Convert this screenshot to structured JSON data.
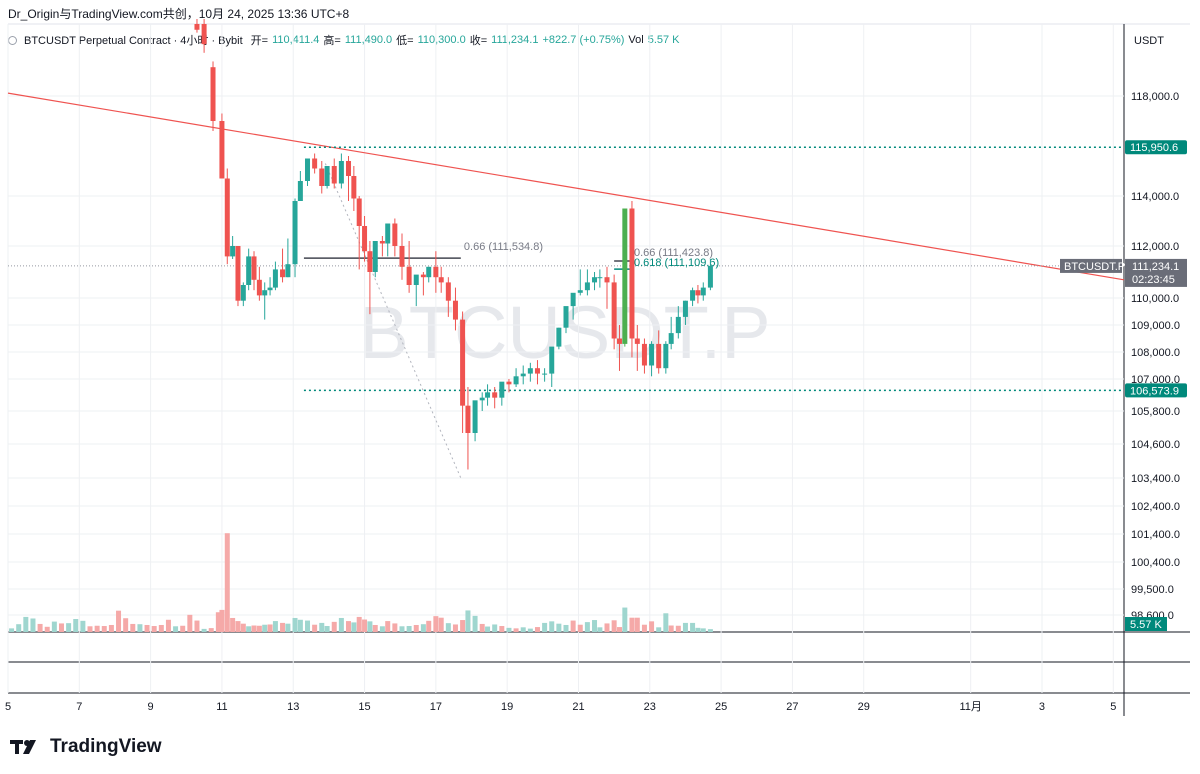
{
  "header": {
    "author": "Dr_Origin与TradingView.com共创，10月 24, 2025 13:36 UTC+8"
  },
  "legend": {
    "symbol": "BTCUSDT Perpetual Contract · 4小时 · Bybit",
    "open_label": "开=",
    "open": "110,411.4",
    "high_label": "高=",
    "high": "111,490.0",
    "low_label": "低=",
    "low": "110,300.0",
    "close_label": "收=",
    "close": "111,234.1",
    "change": "+822.7 (+0.75%)",
    "vol_label": "Vol",
    "vol": "5.57 K"
  },
  "watermark": "BTCUSDT.P",
  "brand": "TradingView",
  "colors": {
    "up": "#26a69a",
    "down": "#ef5350",
    "up_bright": "#4caf50",
    "trendline": "#ef5350",
    "level": "#00897b",
    "grid": "#eef0f3"
  },
  "chart_data": {
    "type": "candlestick",
    "currency": "USDT",
    "y_axis_ticks": [
      "118,000.0",
      "114,000.0",
      "112,000.0",
      "110,000.0",
      "109,000.0",
      "108,000.0",
      "107,000.0",
      "105,800.0",
      "104,600.0",
      "103,400.0",
      "102,400.0",
      "101,400.0",
      "100,400.0",
      "99,500.0",
      "98,600.0"
    ],
    "y_axis_tick_values": [
      118000,
      114000,
      112000,
      110000,
      109000,
      108000,
      107000,
      105800,
      104600,
      103400,
      102400,
      101400,
      100400,
      99500,
      98600
    ],
    "x_axis_ticks": [
      "5",
      "7",
      "9",
      "11",
      "13",
      "15",
      "17",
      "19",
      "21",
      "23",
      "25",
      "27",
      "29",
      "11月",
      "3",
      "5"
    ],
    "x_axis_tick_values": [
      5,
      7,
      9,
      11,
      13,
      15,
      17,
      19,
      21,
      23,
      25,
      27,
      29,
      32,
      34,
      36
    ],
    "x_range": [
      5,
      36.3
    ],
    "y_range": [
      98000,
      120500
    ],
    "last_price_label": "BTCUSDT.P",
    "last_price": "111,234.1",
    "countdown": "02:23:45",
    "levels": [
      {
        "label": "115,950.6",
        "value": 115950.6
      },
      {
        "label": "106,573.9",
        "value": 106573.9
      }
    ],
    "volume_label": "5.57 K",
    "fib_annotations": [
      {
        "text": "0.66 (111,534.8)",
        "value": 111534.8,
        "x_start": 13.3,
        "x_end": 17.7
      },
      {
        "text": "0.66 (111,423.8)",
        "value": 111423.8,
        "x_start": 22.0,
        "x_end": 22.5
      },
      {
        "text": "0.618 (111,109.6)",
        "value": 111109.6,
        "x_start": 22.0,
        "x_end": 22.5
      }
    ],
    "trendline": {
      "x1": 5.0,
      "y1": 118100,
      "x2": 36.3,
      "y2": 110700
    },
    "fib_swing_line": {
      "x1": 13.9,
      "y1": 115300,
      "x2": 17.7,
      "y2": 103400
    },
    "candles": [
      [
        10.3,
        120500,
        120700,
        120300,
        120200
      ],
      [
        10.5,
        120500,
        120700,
        119800,
        119500
      ],
      [
        10.75,
        119000,
        119200,
        117000,
        116600
      ],
      [
        11.0,
        117000,
        117300,
        114700,
        114700
      ],
      [
        11.15,
        114700,
        115100,
        111600,
        111300
      ],
      [
        11.3,
        111600,
        112400,
        112000,
        111500
      ],
      [
        11.45,
        112000,
        112000,
        109900,
        109700
      ],
      [
        11.6,
        109900,
        110600,
        110500,
        109700
      ],
      [
        11.75,
        110500,
        111900,
        111600,
        110300
      ],
      [
        11.9,
        111600,
        111800,
        110700,
        110300
      ],
      [
        12.05,
        110700,
        111200,
        110100,
        109900
      ],
      [
        12.2,
        110100,
        110600,
        110300,
        109200
      ],
      [
        12.35,
        110300,
        110800,
        110400,
        110100
      ],
      [
        12.5,
        110400,
        111400,
        111100,
        110300
      ],
      [
        12.7,
        111100,
        111900,
        110800,
        110600
      ],
      [
        12.85,
        110800,
        112300,
        111300,
        110800
      ],
      [
        13.05,
        111300,
        113900,
        113800,
        110800
      ],
      [
        13.2,
        113800,
        115000,
        114600,
        113800
      ],
      [
        13.4,
        114600,
        115200,
        115500,
        114400
      ],
      [
        13.6,
        115500,
        115700,
        115100,
        114900
      ],
      [
        13.8,
        115100,
        115400,
        114400,
        114100
      ],
      [
        13.95,
        114400,
        115200,
        115200,
        114300
      ],
      [
        14.15,
        115200,
        115500,
        114500,
        114300
      ],
      [
        14.35,
        114500,
        115700,
        115400,
        114300
      ],
      [
        14.55,
        115400,
        115600,
        114800,
        113800
      ],
      [
        14.7,
        114800,
        115200,
        113900,
        113400
      ],
      [
        14.85,
        113900,
        114000,
        112800,
        111100
      ],
      [
        15.0,
        112800,
        113200,
        111800,
        111400
      ],
      [
        15.15,
        111800,
        112200,
        111000,
        109400
      ],
      [
        15.3,
        111000,
        112200,
        112200,
        110800
      ],
      [
        15.5,
        112200,
        112400,
        112100,
        111600
      ],
      [
        15.65,
        112100,
        112700,
        112900,
        111600
      ],
      [
        15.85,
        112900,
        113100,
        112000,
        111600
      ],
      [
        16.05,
        112000,
        112500,
        111200,
        110700
      ],
      [
        16.25,
        111200,
        112200,
        110500,
        110200
      ],
      [
        16.45,
        110500,
        110800,
        110900,
        109700
      ],
      [
        16.65,
        110900,
        111000,
        110800,
        110100
      ],
      [
        16.8,
        110800,
        111200,
        111200,
        110600
      ],
      [
        17.0,
        111200,
        111800,
        110800,
        110200
      ],
      [
        17.15,
        110800,
        111200,
        110600,
        110200
      ],
      [
        17.35,
        110600,
        110800,
        109900,
        109300
      ],
      [
        17.55,
        109900,
        110400,
        109200,
        108800
      ],
      [
        17.75,
        109200,
        109500,
        106000,
        105000
      ],
      [
        17.9,
        106000,
        106700,
        105000,
        103700
      ],
      [
        18.1,
        105000,
        106000,
        106200,
        104700
      ],
      [
        18.3,
        106200,
        106500,
        106300,
        105800
      ],
      [
        18.45,
        106300,
        106800,
        106500,
        106000
      ],
      [
        18.65,
        106500,
        106700,
        106300,
        105900
      ],
      [
        18.85,
        106300,
        106800,
        106900,
        106000
      ],
      [
        19.05,
        106900,
        107000,
        106800,
        106500
      ],
      [
        19.25,
        106800,
        107400,
        107100,
        106700
      ],
      [
        19.45,
        107100,
        107500,
        107200,
        106800
      ],
      [
        19.65,
        107200,
        107600,
        107400,
        106900
      ],
      [
        19.85,
        107400,
        107700,
        107200,
        106800
      ],
      [
        20.05,
        107200,
        107400,
        107200,
        106900
      ],
      [
        20.25,
        107200,
        108000,
        108200,
        106700
      ],
      [
        20.45,
        108200,
        108900,
        108900,
        108100
      ],
      [
        20.65,
        108900,
        109600,
        109700,
        108700
      ],
      [
        20.85,
        109700,
        110100,
        110200,
        109200
      ],
      [
        21.05,
        110200,
        111100,
        110300,
        110100
      ],
      [
        21.25,
        110300,
        111100,
        110600,
        110100
      ],
      [
        21.45,
        110600,
        111000,
        110800,
        110300
      ],
      [
        21.6,
        110800,
        111100,
        110800,
        110400
      ],
      [
        21.8,
        110800,
        111200,
        110600,
        109600
      ],
      [
        22.0,
        110600,
        110900,
        108500,
        108100
      ],
      [
        22.15,
        108500,
        109000,
        108300,
        107300
      ],
      [
        22.3,
        108300,
        109400,
        113500,
        108200
      ],
      [
        22.5,
        113500,
        113800,
        108500,
        107800
      ],
      [
        22.65,
        108500,
        109000,
        108300,
        107300
      ],
      [
        22.85,
        108300,
        108500,
        107500,
        107200
      ],
      [
        23.05,
        107500,
        108400,
        108300,
        107100
      ],
      [
        23.25,
        108300,
        108800,
        107400,
        107200
      ],
      [
        23.45,
        107400,
        108400,
        108300,
        107200
      ],
      [
        23.6,
        108300,
        109300,
        108700,
        108100
      ],
      [
        23.8,
        108700,
        109700,
        109300,
        108500
      ],
      [
        24.0,
        109300,
        109900,
        109900,
        109000
      ],
      [
        24.2,
        109900,
        110400,
        110300,
        109700
      ],
      [
        24.35,
        110300,
        110500,
        110100,
        109800
      ],
      [
        24.5,
        110100,
        110600,
        110400,
        109900
      ],
      [
        24.7,
        110400,
        111500,
        111234,
        110300
      ]
    ],
    "volume": [
      [
        5.1,
        1.4,
        1
      ],
      [
        5.3,
        3.0,
        1
      ],
      [
        5.5,
        5.8,
        1
      ],
      [
        5.7,
        5.2,
        1
      ],
      [
        5.9,
        3.1,
        0
      ],
      [
        6.1,
        2.0,
        0
      ],
      [
        6.3,
        4.0,
        1
      ],
      [
        6.5,
        3.3,
        0
      ],
      [
        6.7,
        3.4,
        1
      ],
      [
        6.9,
        5.0,
        1
      ],
      [
        7.1,
        4.3,
        1
      ],
      [
        7.3,
        2.2,
        0
      ],
      [
        7.5,
        2.4,
        0
      ],
      [
        7.7,
        2.3,
        0
      ],
      [
        7.9,
        2.7,
        0
      ],
      [
        8.1,
        8.2,
        0
      ],
      [
        8.3,
        5.3,
        0
      ],
      [
        8.5,
        3.1,
        0
      ],
      [
        8.7,
        3.0,
        1
      ],
      [
        8.9,
        2.7,
        0
      ],
      [
        9.1,
        2.3,
        0
      ],
      [
        9.3,
        2.7,
        0
      ],
      [
        9.5,
        4.7,
        0
      ],
      [
        9.7,
        2.2,
        1
      ],
      [
        9.9,
        2.4,
        0
      ],
      [
        10.1,
        6.6,
        0
      ],
      [
        10.3,
        4.4,
        0
      ],
      [
        10.5,
        1.2,
        1
      ],
      [
        10.7,
        1.5,
        0
      ],
      [
        10.9,
        7.6,
        0
      ],
      [
        11.0,
        8.5,
        0
      ],
      [
        11.15,
        38.0,
        0
      ],
      [
        11.3,
        5.4,
        0
      ],
      [
        11.45,
        4.2,
        0
      ],
      [
        11.6,
        3.2,
        0
      ],
      [
        11.75,
        2.2,
        1
      ],
      [
        11.9,
        2.5,
        0
      ],
      [
        12.05,
        2.4,
        0
      ],
      [
        12.2,
        2.8,
        1
      ],
      [
        12.35,
        2.9,
        0
      ],
      [
        12.5,
        4.2,
        1
      ],
      [
        12.7,
        3.5,
        0
      ],
      [
        12.85,
        3.2,
        1
      ],
      [
        13.05,
        5.4,
        1
      ],
      [
        13.2,
        4.7,
        1
      ],
      [
        13.4,
        4.4,
        1
      ],
      [
        13.6,
        2.8,
        0
      ],
      [
        13.8,
        3.5,
        1
      ],
      [
        13.95,
        2.3,
        1
      ],
      [
        14.15,
        3.9,
        0
      ],
      [
        14.35,
        5.4,
        1
      ],
      [
        14.55,
        4.2,
        0
      ],
      [
        14.7,
        3.7,
        1
      ],
      [
        14.85,
        5.8,
        0
      ],
      [
        15.0,
        4.8,
        0
      ],
      [
        15.15,
        4.1,
        1
      ],
      [
        15.3,
        2.7,
        0
      ],
      [
        15.5,
        2.2,
        1
      ],
      [
        15.65,
        4.2,
        0
      ],
      [
        15.85,
        3.3,
        0
      ],
      [
        16.05,
        2.2,
        1
      ],
      [
        16.25,
        2.3,
        1
      ],
      [
        16.45,
        2.7,
        0
      ],
      [
        16.65,
        3.0,
        1
      ],
      [
        16.8,
        4.3,
        0
      ],
      [
        17.0,
        6.1,
        0
      ],
      [
        17.15,
        5.5,
        0
      ],
      [
        17.35,
        3.4,
        1
      ],
      [
        17.55,
        2.9,
        0
      ],
      [
        17.75,
        4.6,
        0
      ],
      [
        17.9,
        8.3,
        1
      ],
      [
        18.1,
        6.2,
        1
      ],
      [
        18.3,
        3.1,
        0
      ],
      [
        18.45,
        2.1,
        1
      ],
      [
        18.65,
        2.9,
        1
      ],
      [
        18.85,
        2.3,
        0
      ],
      [
        19.05,
        1.6,
        1
      ],
      [
        19.25,
        1.4,
        0
      ],
      [
        19.45,
        1.8,
        1
      ],
      [
        19.65,
        1.3,
        1
      ],
      [
        19.85,
        1.9,
        0
      ],
      [
        20.05,
        3.5,
        1
      ],
      [
        20.25,
        4.1,
        1
      ],
      [
        20.45,
        3.2,
        1
      ],
      [
        20.65,
        2.7,
        1
      ],
      [
        20.85,
        4.4,
        0
      ],
      [
        21.05,
        2.8,
        0
      ],
      [
        21.25,
        3.8,
        1
      ],
      [
        21.45,
        4.6,
        1
      ],
      [
        21.6,
        1.8,
        1
      ],
      [
        21.8,
        3.3,
        0
      ],
      [
        22.0,
        4.5,
        0
      ],
      [
        22.15,
        1.9,
        0
      ],
      [
        22.3,
        9.4,
        1
      ],
      [
        22.5,
        5.5,
        0
      ],
      [
        22.65,
        5.5,
        0
      ],
      [
        22.85,
        2.8,
        0
      ],
      [
        23.05,
        4.1,
        0
      ],
      [
        23.25,
        1.8,
        1
      ],
      [
        23.45,
        7.2,
        1
      ],
      [
        23.6,
        2.5,
        0
      ],
      [
        23.8,
        2.4,
        0
      ],
      [
        24.0,
        3.5,
        1
      ],
      [
        24.2,
        3.5,
        1
      ],
      [
        24.35,
        1.6,
        1
      ],
      [
        24.5,
        1.4,
        1
      ],
      [
        24.7,
        1.1,
        1
      ]
    ],
    "grid": true,
    "legend_placement": "top-left"
  }
}
